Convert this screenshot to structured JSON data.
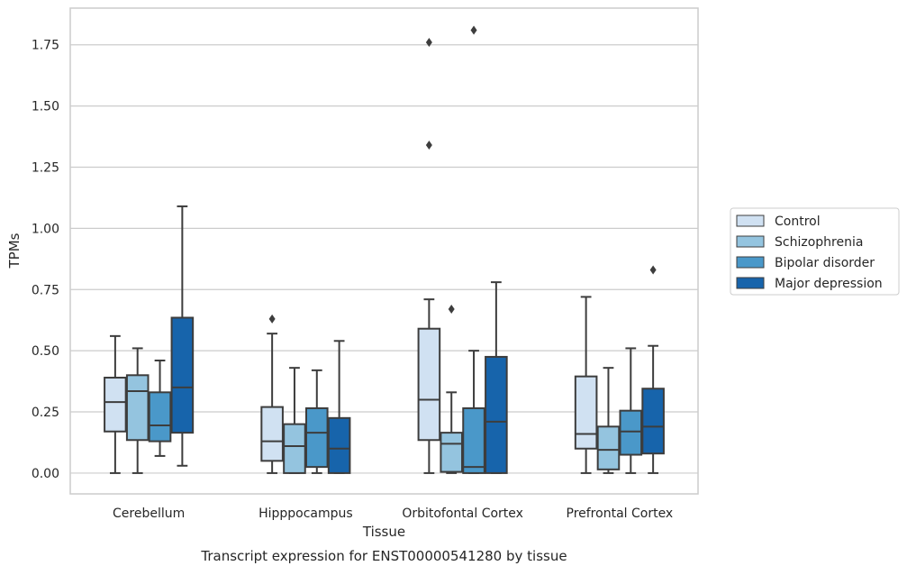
{
  "chart_data": {
    "type": "boxplot",
    "caption": "Transcript expression for ENST00000541280 by tissue",
    "xlabel": "Tissue",
    "ylabel": "TPMs",
    "ylim": [
      -0.085,
      1.9
    ],
    "yticks": [
      0.0,
      0.25,
      0.5,
      0.75,
      1.0,
      1.25,
      1.5,
      1.75
    ],
    "ytick_labels": [
      "0.00",
      "0.25",
      "0.50",
      "0.75",
      "1.00",
      "1.25",
      "1.50",
      "1.75"
    ],
    "grid": "horizontal",
    "legend_placement": "right",
    "categories": [
      "Cerebellum",
      "Hipppocampus",
      "Orbitofontal Cortex",
      "Prefrontal Cortex"
    ],
    "series": [
      {
        "name": "Control",
        "color": "#d0e1f2",
        "boxes": [
          {
            "whislo": 0.0,
            "q1": 0.17,
            "median": 0.29,
            "q3": 0.39,
            "whishi": 0.56,
            "fliers": []
          },
          {
            "whislo": 0.0,
            "q1": 0.05,
            "median": 0.13,
            "q3": 0.27,
            "whishi": 0.57,
            "fliers": [
              0.63
            ]
          },
          {
            "whislo": 0.0,
            "q1": 0.135,
            "median": 0.3,
            "q3": 0.59,
            "whishi": 0.71,
            "fliers": [
              1.34,
              1.76
            ]
          },
          {
            "whislo": 0.0,
            "q1": 0.1,
            "median": 0.16,
            "q3": 0.395,
            "whishi": 0.72,
            "fliers": []
          }
        ]
      },
      {
        "name": "Schizophrenia",
        "color": "#94c4df",
        "boxes": [
          {
            "whislo": 0.0,
            "q1": 0.135,
            "median": 0.335,
            "q3": 0.4,
            "whishi": 0.51,
            "fliers": []
          },
          {
            "whislo": 0.0,
            "q1": 0.0,
            "median": 0.11,
            "q3": 0.2,
            "whishi": 0.43,
            "fliers": []
          },
          {
            "whislo": 0.0,
            "q1": 0.005,
            "median": 0.12,
            "q3": 0.165,
            "whishi": 0.33,
            "fliers": [
              0.67
            ]
          },
          {
            "whislo": 0.0,
            "q1": 0.015,
            "median": 0.095,
            "q3": 0.19,
            "whishi": 0.43,
            "fliers": []
          }
        ]
      },
      {
        "name": "Bipolar disorder",
        "color": "#4a98c9",
        "boxes": [
          {
            "whislo": 0.07,
            "q1": 0.13,
            "median": 0.195,
            "q3": 0.33,
            "whishi": 0.46,
            "fliers": []
          },
          {
            "whislo": 0.0,
            "q1": 0.025,
            "median": 0.165,
            "q3": 0.265,
            "whishi": 0.42,
            "fliers": []
          },
          {
            "whislo": 0.0,
            "q1": 0.0,
            "median": 0.025,
            "q3": 0.265,
            "whishi": 0.5,
            "fliers": [
              1.81
            ]
          },
          {
            "whislo": 0.0,
            "q1": 0.075,
            "median": 0.17,
            "q3": 0.255,
            "whishi": 0.51,
            "fliers": []
          }
        ]
      },
      {
        "name": "Major depression",
        "color": "#1764ab",
        "boxes": [
          {
            "whislo": 0.03,
            "q1": 0.165,
            "median": 0.35,
            "q3": 0.635,
            "whishi": 1.09,
            "fliers": []
          },
          {
            "whislo": 0.0,
            "q1": 0.0,
            "median": 0.1,
            "q3": 0.225,
            "whishi": 0.54,
            "fliers": []
          },
          {
            "whislo": 0.0,
            "q1": 0.0,
            "median": 0.21,
            "q3": 0.475,
            "whishi": 0.78,
            "fliers": []
          },
          {
            "whislo": 0.0,
            "q1": 0.08,
            "median": 0.19,
            "q3": 0.345,
            "whishi": 0.52,
            "fliers": [
              0.83
            ]
          }
        ]
      }
    ]
  }
}
